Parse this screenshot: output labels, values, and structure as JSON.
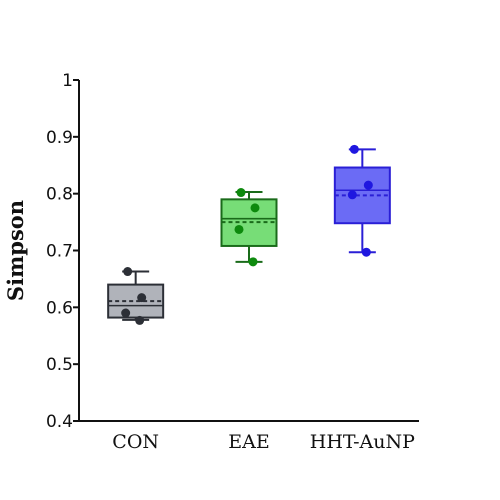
{
  "chart_data": {
    "type": "box",
    "ylabel": "Simpson",
    "xlabel": "",
    "ylim": [
      0.4,
      1.0
    ],
    "yticks": [
      0.4,
      0.5,
      0.6,
      0.7,
      0.8,
      0.9,
      1.0
    ],
    "ytick_labels": [
      "0.4",
      "0.5",
      "0.6",
      "0.7",
      "0.8",
      "0.9",
      "1"
    ],
    "categories": [
      "CON",
      "EAE",
      "HHT-AuNP"
    ],
    "grid": false,
    "legend": "none",
    "groups": [
      {
        "category": "CON",
        "fill": "#b0b3ba",
        "stroke": "#2c2f36",
        "point_color": "#2c2f36",
        "whisker_low": 0.578,
        "q1": 0.582,
        "median": 0.603,
        "mean": 0.611,
        "q3": 0.64,
        "whisker_high": 0.663,
        "points": [
          0.663,
          0.617,
          0.59,
          0.577
        ]
      },
      {
        "category": "EAE",
        "fill": "#77dd77",
        "stroke": "#1a6b1a",
        "point_color": "#0d8a0d",
        "whisker_low": 0.68,
        "q1": 0.708,
        "median": 0.756,
        "mean": 0.75,
        "q3": 0.79,
        "whisker_high": 0.803,
        "points": [
          0.802,
          0.775,
          0.737,
          0.68
        ]
      },
      {
        "category": "HHT-AuNP",
        "fill": "#6b6bf5",
        "stroke": "#2a1fd6",
        "point_color": "#1f17e0",
        "whisker_low": 0.697,
        "q1": 0.748,
        "median": 0.806,
        "mean": 0.797,
        "q3": 0.846,
        "whisker_high": 0.878,
        "points": [
          0.878,
          0.815,
          0.798,
          0.697
        ]
      }
    ]
  }
}
